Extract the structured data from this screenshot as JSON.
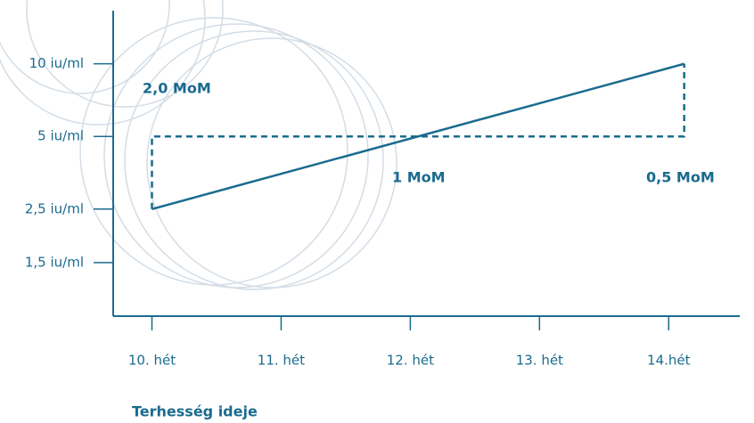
{
  "chart_data": {
    "type": "line",
    "x_label": "Terhesség ideje",
    "xlim": [
      9.7,
      14.55
    ],
    "xticks": [
      {
        "value": 10,
        "label": "10. hét"
      },
      {
        "value": 11,
        "label": "11. hét"
      },
      {
        "value": 12,
        "label": "12. hét"
      },
      {
        "value": 13,
        "label": "13. hét"
      },
      {
        "value": 14,
        "label": "14.hét"
      }
    ],
    "ylim": [
      0.9,
      16.6
    ],
    "yscale": "log",
    "yticks": [
      {
        "value": 10,
        "label": "10  iu/ml"
      },
      {
        "value": 5,
        "label": "5  iu/ml"
      },
      {
        "value": 2.5,
        "label": "2,5 iu/ml"
      },
      {
        "value": 1.5,
        "label": "1,5 iu/ml"
      }
    ],
    "series": [
      {
        "color": "#1a6b8e",
        "style": "solid",
        "x": [
          10,
          14.12
        ],
        "values": [
          2.5,
          10
        ]
      },
      {
        "color": "#1a6b8e",
        "style": "dashed",
        "x": [
          10,
          10,
          14.12,
          14.12
        ],
        "values": [
          2.5,
          5,
          5,
          10
        ]
      }
    ],
    "annotations": [
      "2,0 MoM",
      "1 MoM",
      "0,5 MoM"
    ]
  }
}
